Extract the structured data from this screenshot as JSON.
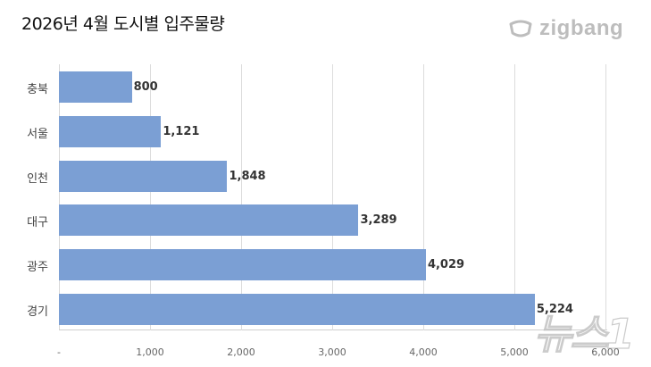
{
  "header": {
    "title": "2026년 4월 도시별 입주물량",
    "logo": "zigbang"
  },
  "watermark": "뉴스1",
  "colors": {
    "bar": "#7b9fd4",
    "grid": "#dcdcdc",
    "logo": "#bdbdbd"
  },
  "chart_data": {
    "type": "bar",
    "orientation": "horizontal",
    "title": "2026년 4월 도시별 입주물량",
    "categories": [
      "충북",
      "서울",
      "인천",
      "대구",
      "광주",
      "경기"
    ],
    "values": [
      800,
      1121,
      1848,
      3289,
      4029,
      5224
    ],
    "value_labels": [
      "800",
      "1,121",
      "1,848",
      "3,289",
      "4,029",
      "5,224"
    ],
    "xlabel": "",
    "ylabel": "",
    "xlim": [
      0,
      6000
    ],
    "x_ticks": [
      "-",
      "1,000",
      "2,000",
      "3,000",
      "4,000",
      "5,000",
      "6,000"
    ],
    "grid": true,
    "legend": null
  }
}
